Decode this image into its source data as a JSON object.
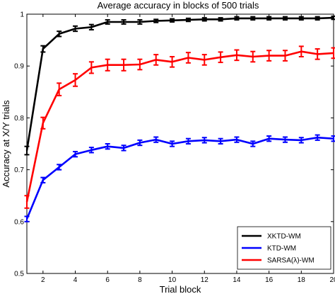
{
  "chart_data": {
    "type": "line",
    "title": "Average accuracy in blocks of 500 trials",
    "xlabel": "Trial block",
    "ylabel": "Accuracy at X/Y trials",
    "xlim": [
      1,
      20
    ],
    "ylim": [
      0.5,
      1
    ],
    "xticks": [
      2,
      4,
      6,
      8,
      10,
      12,
      14,
      16,
      18,
      20
    ],
    "yticks": [
      0.5,
      0.6,
      0.7,
      0.8,
      0.9,
      1
    ],
    "ytick_labels": [
      "0.5",
      "0.6",
      "0.7",
      "0.8",
      "0.9",
      "1"
    ],
    "grid": false,
    "legend_position": "bottom-right",
    "x": [
      1,
      2,
      3,
      4,
      5,
      6,
      7,
      8,
      9,
      10,
      11,
      12,
      13,
      14,
      15,
      16,
      17,
      18,
      19,
      20
    ],
    "series": [
      {
        "name": "XKTD-WM",
        "color": "#000000",
        "values": [
          0.737,
          0.933,
          0.962,
          0.972,
          0.975,
          0.985,
          0.985,
          0.985,
          0.987,
          0.988,
          0.989,
          0.99,
          0.99,
          0.992,
          0.992,
          0.992,
          0.992,
          0.992,
          0.992,
          0.993
        ],
        "errors": [
          0.008,
          0.006,
          0.005,
          0.005,
          0.005,
          0.004,
          0.004,
          0.004,
          0.003,
          0.003,
          0.003,
          0.003,
          0.003,
          0.003,
          0.003,
          0.003,
          0.003,
          0.003,
          0.003,
          0.003
        ]
      },
      {
        "name": "KTD-WM",
        "color": "#0000ff",
        "values": [
          0.605,
          0.68,
          0.705,
          0.73,
          0.738,
          0.745,
          0.742,
          0.752,
          0.758,
          0.75,
          0.755,
          0.757,
          0.755,
          0.758,
          0.75,
          0.76,
          0.758,
          0.757,
          0.762,
          0.76
        ],
        "errors": [
          0.005,
          0.005,
          0.005,
          0.005,
          0.005,
          0.005,
          0.005,
          0.005,
          0.005,
          0.005,
          0.005,
          0.005,
          0.005,
          0.005,
          0.005,
          0.005,
          0.005,
          0.005,
          0.005,
          0.005
        ]
      },
      {
        "name": "SARSA(λ)-WM",
        "color": "#ff0000",
        "values": [
          0.638,
          0.79,
          0.855,
          0.873,
          0.897,
          0.902,
          0.902,
          0.903,
          0.912,
          0.908,
          0.916,
          0.912,
          0.917,
          0.921,
          0.918,
          0.92,
          0.92,
          0.928,
          0.923,
          0.925
        ],
        "errors": [
          0.012,
          0.011,
          0.012,
          0.012,
          0.011,
          0.011,
          0.011,
          0.01,
          0.01,
          0.01,
          0.01,
          0.01,
          0.01,
          0.01,
          0.01,
          0.01,
          0.01,
          0.01,
          0.01,
          0.01
        ]
      }
    ]
  }
}
